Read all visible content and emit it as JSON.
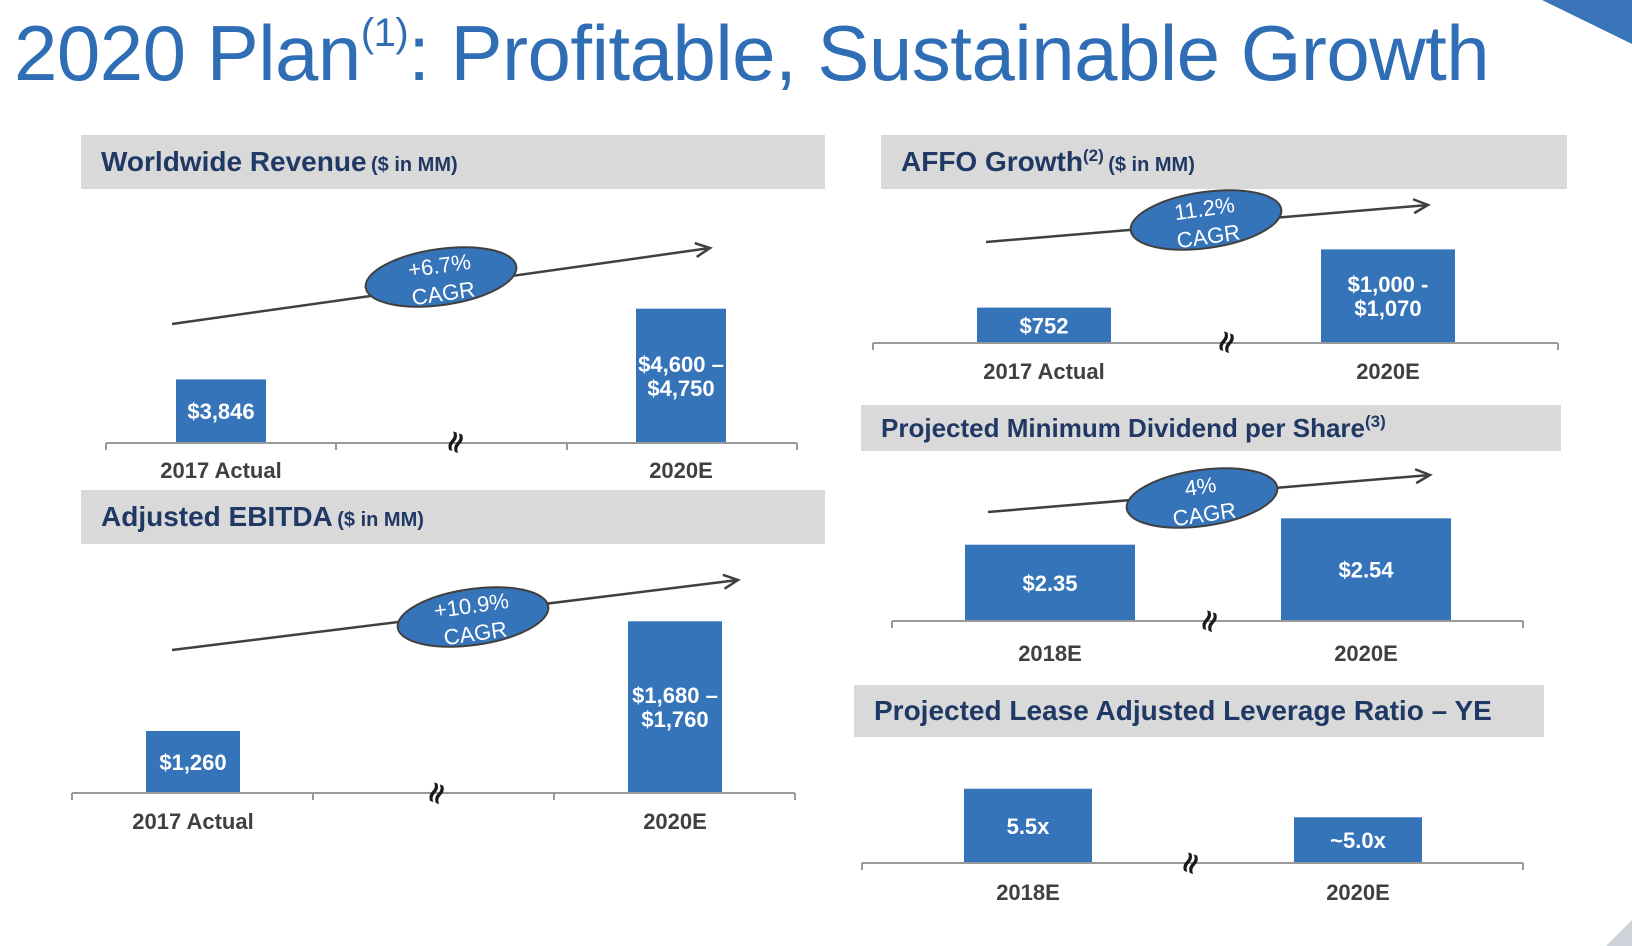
{
  "title": {
    "main": "2020 Plan",
    "sup": "(1)",
    "rest": ": Profitable, Sustainable Growth"
  },
  "colors": {
    "bar": "#3674ba",
    "title": "#2f6db5",
    "header_text": "#1f3864",
    "header_bg": "#d9d9d9"
  },
  "panels": {
    "revenue": {
      "title": "Worldwide Revenue",
      "sup": "",
      "unit": "($ in MM)"
    },
    "ebitda": {
      "title": "Adjusted EBITDA",
      "sup": "",
      "unit": "($ in MM)"
    },
    "affo": {
      "title": "AFFO Growth",
      "sup": "(2)",
      "unit": "($ in MM)"
    },
    "dividend": {
      "title": "Projected Minimum Dividend per Share",
      "sup": "(3)",
      "unit": ""
    },
    "leverage": {
      "title": "Projected Lease Adjusted Leverage Ratio – YE",
      "sup": "",
      "unit": ""
    }
  },
  "chart_data": [
    {
      "id": "revenue",
      "type": "bar",
      "title": "Worldwide Revenue ($ in MM)",
      "categories": [
        "2017 Actual",
        "2020E"
      ],
      "values": [
        3846,
        4675
      ],
      "labels": [
        "$3,846",
        [
          "$4,600 –",
          "$4,750"
        ]
      ],
      "ylim": [
        3100,
        4800
      ],
      "cagr": [
        "+6.7%",
        "CAGR"
      ],
      "axis_break": true
    },
    {
      "id": "ebitda",
      "type": "bar",
      "title": "Adjusted EBITDA ($ in MM)",
      "categories": [
        "2017 Actual",
        "2020E"
      ],
      "values": [
        1260,
        1720
      ],
      "labels": [
        "$1,260",
        [
          "$1,680 –",
          "$1,760"
        ]
      ],
      "ylim": [
        1000,
        1780
      ],
      "cagr": [
        "+10.9%",
        "CAGR"
      ],
      "axis_break": true
    },
    {
      "id": "affo",
      "type": "bar",
      "title": "AFFO Growth(2) ($ in MM)",
      "categories": [
        "2017 Actual",
        "2020E"
      ],
      "values": [
        752,
        1035
      ],
      "labels": [
        "$752",
        [
          "$1,000 -",
          "$1,070"
        ]
      ],
      "ylim": [
        580,
        1100
      ],
      "cagr": [
        "11.2%",
        "CAGR"
      ],
      "axis_break": true
    },
    {
      "id": "dividend",
      "type": "bar",
      "title": "Projected Minimum Dividend per Share(3)",
      "categories": [
        "2018E",
        "2020E"
      ],
      "values": [
        2.35,
        2.54
      ],
      "labels": [
        "$2.35",
        "$2.54"
      ],
      "ylim": [
        1.8,
        2.6
      ],
      "cagr": [
        "4%",
        "CAGR"
      ],
      "axis_break": true
    },
    {
      "id": "leverage",
      "type": "bar",
      "title": "Projected Lease Adjusted Leverage Ratio – YE",
      "categories": [
        "2018E",
        "2020E"
      ],
      "values": [
        5.5,
        5.0
      ],
      "labels": [
        "5.5x",
        "~5.0x"
      ],
      "ylim": [
        4.2,
        5.6
      ],
      "cagr": null,
      "axis_break": true
    }
  ]
}
